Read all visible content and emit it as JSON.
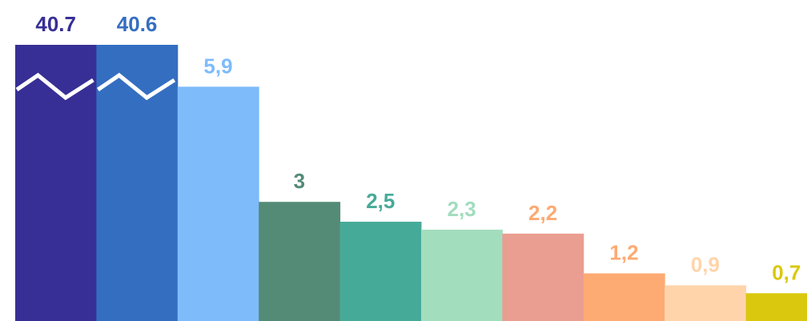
{
  "chart_data": {
    "type": "bar",
    "axis_break": true,
    "break_bars": [
      0,
      1
    ],
    "break_value": 7.0,
    "ylim": [
      0,
      7.6
    ],
    "grid": false,
    "legend": "none",
    "values": [
      40.7,
      40.6,
      5.9,
      3,
      2.5,
      2.3,
      2.2,
      1.2,
      0.9,
      0.7
    ],
    "data_labels": [
      "40.7",
      "40.6",
      "5,9",
      "3",
      "2,5",
      "2,3",
      "2,2",
      "1,2",
      "0,9",
      "0,7"
    ],
    "colors": [
      "#372F95",
      "#346EC1",
      "#7EBBFB",
      "#548B77",
      "#46AA98",
      "#A2DDBE",
      "#EA9D91",
      "#FDAA73",
      "#FFD4AB",
      "#DAC80E"
    ],
    "label_colors": [
      "#372F95",
      "#346EC1",
      "#7EBBFB",
      "#548B77",
      "#46AA98",
      "#A2DDBE",
      "#FDAA73",
      "#FDAA73",
      "#FFD4AB",
      "#DAC80E"
    ],
    "break_mark_color": "#FFFFFF"
  }
}
